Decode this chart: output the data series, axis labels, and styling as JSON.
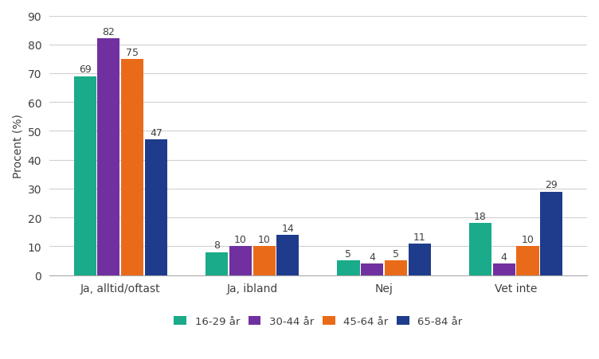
{
  "categories": [
    "Ja, alltid/oftast",
    "Ja, ibland",
    "Nej",
    "Vet inte"
  ],
  "series": {
    "16-29 år": [
      69,
      8,
      5,
      18
    ],
    "30-44 år": [
      82,
      10,
      4,
      4
    ],
    "45-64 år": [
      75,
      10,
      5,
      10
    ],
    "65-84 år": [
      47,
      14,
      11,
      29
    ]
  },
  "colors": {
    "16-29 år": "#1aab8a",
    "30-44 år": "#7030a0",
    "45-64 år": "#e96b1a",
    "65-84 år": "#1f3b8c"
  },
  "ylabel": "Procent (%)",
  "ylim": [
    0,
    90
  ],
  "yticks": [
    0,
    10,
    20,
    30,
    40,
    50,
    60,
    70,
    80,
    90
  ],
  "background_color": "#ffffff",
  "bar_width": 0.17,
  "bar_gap": 0.01,
  "label_fontsize": 9,
  "axis_fontsize": 10,
  "legend_fontsize": 9.5
}
